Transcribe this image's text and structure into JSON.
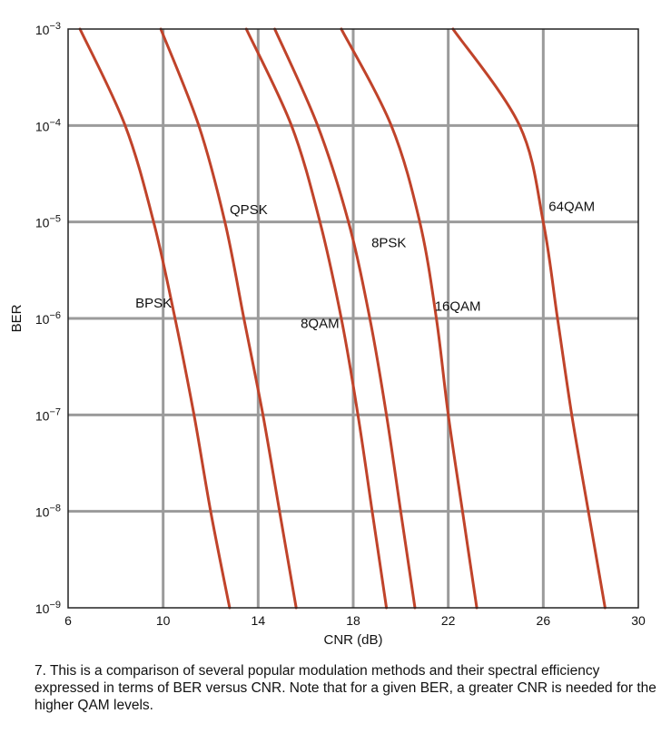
{
  "chart_data": {
    "type": "line",
    "title": "",
    "xlabel": "CNR (dB)",
    "ylabel": "BER",
    "xlim": [
      6,
      30
    ],
    "ylim_exponent": [
      -9,
      -3
    ],
    "y_scale": "log",
    "grid": true,
    "x_ticks": [
      6,
      10,
      14,
      18,
      22,
      26,
      30
    ],
    "x_tick_labels": [
      "6",
      "10",
      "14",
      "18",
      "22",
      "26",
      "30"
    ],
    "y_tick_base": "10",
    "y_tick_exponents": [
      "−3",
      "−4",
      "−5",
      "−6",
      "−7",
      "−8",
      "−9"
    ],
    "line_color": "#c0432a",
    "grid_color": "#9b9b9b",
    "series": [
      {
        "name": "BPSK",
        "points": [
          [
            6.5,
            0.001
          ],
          [
            8.4,
            0.0001
          ],
          [
            9.6,
            1e-05
          ],
          [
            10.5,
            1e-06
          ],
          [
            11.3,
            1e-07
          ],
          [
            12.0,
            1e-08
          ],
          [
            12.8,
            1e-09
          ]
        ]
      },
      {
        "name": "QPSK",
        "points": [
          [
            9.9,
            0.001
          ],
          [
            11.5,
            0.0001
          ],
          [
            12.6,
            1e-05
          ],
          [
            13.4,
            1e-06
          ],
          [
            14.2,
            1e-07
          ],
          [
            14.9,
            1e-08
          ],
          [
            15.6,
            1e-09
          ]
        ]
      },
      {
        "name": "8QAM",
        "points": [
          [
            13.5,
            0.001
          ],
          [
            15.4,
            0.0001
          ],
          [
            16.6,
            1e-05
          ],
          [
            17.5,
            1e-06
          ],
          [
            18.2,
            1e-07
          ],
          [
            18.8,
            1e-08
          ],
          [
            19.4,
            1e-09
          ]
        ]
      },
      {
        "name": "8PSK",
        "points": [
          [
            14.7,
            0.001
          ],
          [
            16.5,
            0.0001
          ],
          [
            17.8,
            1e-05
          ],
          [
            18.7,
            1e-06
          ],
          [
            19.4,
            1e-07
          ],
          [
            20.0,
            1e-08
          ],
          [
            20.6,
            1e-09
          ]
        ]
      },
      {
        "name": "16QAM",
        "points": [
          [
            17.5,
            0.001
          ],
          [
            19.6,
            0.0001
          ],
          [
            20.8,
            1e-05
          ],
          [
            21.5,
            1e-06
          ],
          [
            22.0,
            1e-07
          ],
          [
            22.6,
            1e-08
          ],
          [
            23.2,
            1e-09
          ]
        ]
      },
      {
        "name": "64QAM",
        "points": [
          [
            22.2,
            0.001
          ],
          [
            25.0,
            0.0001
          ],
          [
            26.0,
            1e-05
          ],
          [
            26.6,
            1e-06
          ],
          [
            27.2,
            1e-07
          ],
          [
            27.9,
            1e-08
          ],
          [
            28.6,
            1e-09
          ]
        ]
      }
    ],
    "annotations": [
      {
        "text": "BPSK",
        "x": 9.6,
        "y": 1.3e-06
      },
      {
        "text": "QPSK",
        "x": 13.6,
        "y": 1.2e-05
      },
      {
        "text": "8QAM",
        "x": 16.6,
        "y": 8e-07
      },
      {
        "text": "8PSK",
        "x": 19.5,
        "y": 5.5e-06
      },
      {
        "text": "16QAM",
        "x": 22.4,
        "y": 1.2e-06
      },
      {
        "text": "64QAM",
        "x": 27.2,
        "y": 1.3e-05
      }
    ]
  },
  "caption": "7. This is a comparison of several popular modulation methods and their spectral efficiency expressed in terms of BER versus CNR. Note that for a given BER, a greater CNR is needed for the higher QAM levels."
}
